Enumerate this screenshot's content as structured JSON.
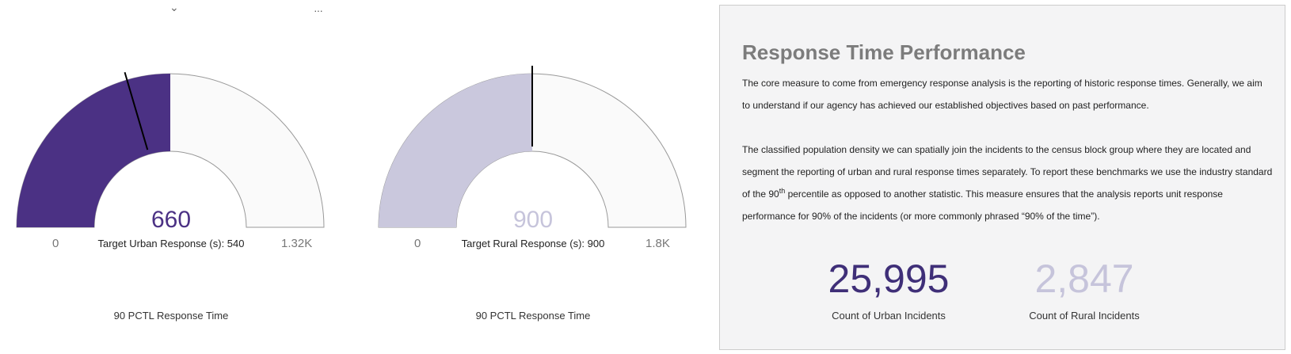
{
  "header_icons": {
    "collapse_icon": "chevron-down-icon",
    "more_icon": "more-horizontal-icon",
    "chevron_glyph": "⌄",
    "more_glyph": "···"
  },
  "gauges": [
    {
      "value": "660",
      "value_num": 660,
      "min_label": "0",
      "max_label": "1.32K",
      "max_num": 1320,
      "target_label": "Target Urban Response (s): 540",
      "target_num": 540,
      "caption": "90 PCTL Response Time",
      "fill_color": "#4b3184",
      "value_color": "#4b3184"
    },
    {
      "value": "900",
      "value_num": 900,
      "min_label": "0",
      "max_label": "1.8K",
      "max_num": 1800,
      "target_label": "Target Rural Response (s): 900",
      "target_num": 900,
      "caption": "90 PCTL Response Time",
      "fill_color": "#cac8dd",
      "value_color": "#c6c4db"
    }
  ],
  "panel": {
    "title": "Response Time Performance",
    "paragraph1": "The core measure to come from emergency response analysis is the reporting of historic response times. Generally, we aim to understand if our agency has achieved our established objectives based on past performance.",
    "paragraph2_part1": "The classified population density we can spatially join the incidents to the census block group where they are located and segment the reporting of urban and rural response times separately. To report these benchmarks we use the industry standard of the 90",
    "paragraph2_sup": "th",
    "paragraph2_part2": " percentile as opposed to another statistic. This measure ensures that the analysis reports unit response performance for 90% of the incidents (or more commonly phrased “90% of the time”).",
    "urban_count": "25,995",
    "urban_label": "Count of Urban Incidents",
    "rural_count": "2,847",
    "rural_label": "Count of Rural Incidents"
  },
  "colors": {
    "urban_accent": "#3f2f78",
    "rural_accent": "#c6c4db",
    "gauge_background": "#fafafa",
    "gauge_border": "#999999",
    "panel_background": "#f4f4f5"
  }
}
